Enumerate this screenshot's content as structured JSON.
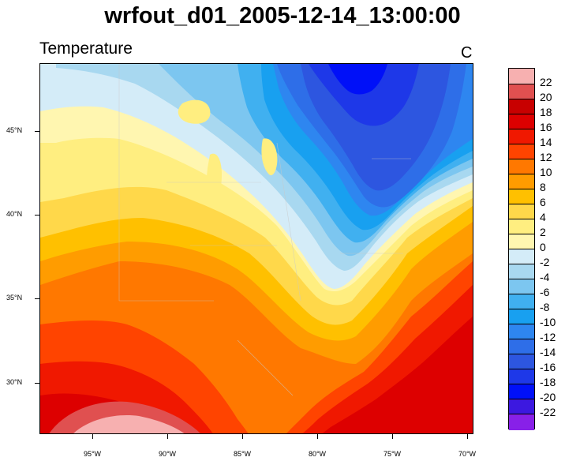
{
  "title": "wrfout_d01_2005-12-14_13:00:00",
  "field_name": "Temperature",
  "units": "C",
  "map": {
    "lat_labels": [
      "45°N",
      "40°N",
      "35°N",
      "30°N"
    ],
    "lon_labels": [
      "95°W",
      "90°W",
      "85°W",
      "80°W",
      "75°W",
      "70°W"
    ],
    "region": "eastern-united-states",
    "lat_range": [
      26.8,
      48.8
    ],
    "lon_range": [
      -98.2,
      -69.8
    ]
  },
  "colorbar": {
    "labels": [
      "22",
      "20",
      "18",
      "16",
      "14",
      "12",
      "10",
      "8",
      "6",
      "4",
      "2",
      "0",
      "-2",
      "-4",
      "-6",
      "-8",
      "-10",
      "-12",
      "-14",
      "-16",
      "-18",
      "-20",
      "-22"
    ],
    "colors": [
      "#f7b0b0",
      "#e05050",
      "#c80000",
      "#dd0000",
      "#f01800",
      "#ff4400",
      "#ff7800",
      "#ff9c00",
      "#ffc000",
      "#ffd84a",
      "#ffee80",
      "#fff6b0",
      "#d4ecf8",
      "#a8d8f0",
      "#7cc6f0",
      "#40b0f0",
      "#18a0f0",
      "#2e86f0",
      "#2e6ee8",
      "#2d56e0",
      "#1e38e8",
      "#0010f8",
      "#3c18e0",
      "#8820e8"
    ]
  }
}
